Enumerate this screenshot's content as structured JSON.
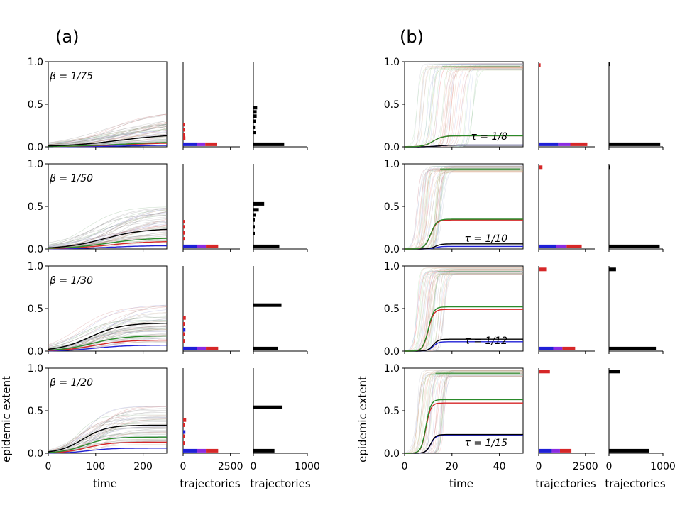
{
  "panels": [
    {
      "label": "(a)",
      "xlabel": "time",
      "ylabel": "epidemic extent",
      "time_xlim": [
        0,
        250
      ],
      "time_ticks": [
        "0",
        "100",
        "200"
      ]
    },
    {
      "label": "(b)",
      "xlabel": "time",
      "ylabel": "epidemic extent",
      "time_xlim": [
        0,
        50
      ],
      "time_ticks": [
        "0",
        "20",
        "40"
      ]
    }
  ],
  "hist_labels": {
    "color": "trajectories",
    "black": "trajectories"
  },
  "hist_ticks": {
    "color": [
      "0",
      "2500"
    ],
    "black": [
      "0",
      "1000"
    ]
  },
  "y_ticks": [
    "0.0",
    "0.5",
    "1.0"
  ],
  "colors": {
    "red": "#d62728",
    "green": "#2a8a2a",
    "blue": "#1f1fd6",
    "black": "#000000",
    "gray": "#7f7f7f",
    "brown": "#a0522d"
  },
  "chart_data": [
    {
      "panel": "a",
      "type": "line",
      "rows": [
        {
          "annotation": "β = 1/75",
          "final": {
            "black": 0.15,
            "green": 0.06,
            "red": 0.05,
            "blue": 0.02
          },
          "rate": 0.018,
          "midpoint": 160,
          "spread": [
            0.05,
            0.45
          ],
          "hist_color": [
            {
              "y": 0.03,
              "w": 1800,
              "c": "mix"
            },
            {
              "y": 0.1,
              "w": 120,
              "c": "red"
            },
            {
              "y": 0.14,
              "w": 80,
              "c": "red"
            },
            {
              "y": 0.2,
              "w": 60,
              "c": "red"
            },
            {
              "y": 0.26,
              "w": 50,
              "c": "red"
            }
          ],
          "hist_black": [
            {
              "y": 0.03,
              "w": 570
            },
            {
              "y": 0.17,
              "w": 40
            },
            {
              "y": 0.23,
              "w": 30
            },
            {
              "y": 0.3,
              "w": 50
            },
            {
              "y": 0.36,
              "w": 60
            },
            {
              "y": 0.41,
              "w": 60
            },
            {
              "y": 0.46,
              "w": 70
            }
          ]
        },
        {
          "annotation": "β = 1/50",
          "final": {
            "black": 0.24,
            "green": 0.13,
            "red": 0.09,
            "blue": 0.04
          },
          "rate": 0.024,
          "midpoint": 130,
          "spread": [
            0.1,
            0.53
          ],
          "hist_color": [
            {
              "y": 0.03,
              "w": 1850,
              "c": "mix"
            },
            {
              "y": 0.12,
              "w": 100,
              "c": "red"
            },
            {
              "y": 0.19,
              "w": 90,
              "c": "red"
            },
            {
              "y": 0.26,
              "w": 80,
              "c": "red"
            },
            {
              "y": 0.32,
              "w": 80,
              "c": "red"
            }
          ],
          "hist_black": [
            {
              "y": 0.03,
              "w": 480
            },
            {
              "y": 0.18,
              "w": 20
            },
            {
              "y": 0.26,
              "w": 20
            },
            {
              "y": 0.34,
              "w": 20
            },
            {
              "y": 0.4,
              "w": 40
            },
            {
              "y": 0.46,
              "w": 100
            },
            {
              "y": 0.53,
              "w": 200
            }
          ]
        },
        {
          "annotation": "β = 1/30",
          "final": {
            "black": 0.33,
            "green": 0.18,
            "red": 0.13,
            "blue": 0.07
          },
          "rate": 0.03,
          "midpoint": 100,
          "spread": [
            0.1,
            0.56
          ],
          "hist_color": [
            {
              "y": 0.03,
              "w": 1850,
              "c": "mix"
            },
            {
              "y": 0.12,
              "w": 60,
              "c": "red"
            },
            {
              "y": 0.2,
              "w": 60,
              "c": "red"
            },
            {
              "y": 0.25,
              "w": 120,
              "c": "blue"
            },
            {
              "y": 0.32,
              "w": 70,
              "c": "red"
            },
            {
              "y": 0.39,
              "w": 140,
              "c": "red"
            }
          ],
          "hist_black": [
            {
              "y": 0.03,
              "w": 450
            },
            {
              "y": 0.54,
              "w": 520
            }
          ]
        },
        {
          "annotation": "β = 1/20",
          "final": {
            "black": 0.33,
            "green": 0.19,
            "red": 0.13,
            "blue": 0.06
          },
          "rate": 0.04,
          "midpoint": 85,
          "spread": [
            0.1,
            0.57
          ],
          "hist_color": [
            {
              "y": 0.03,
              "w": 1850,
              "c": "mix"
            },
            {
              "y": 0.12,
              "w": 60,
              "c": "red"
            },
            {
              "y": 0.2,
              "w": 60,
              "c": "red"
            },
            {
              "y": 0.25,
              "w": 120,
              "c": "blue"
            },
            {
              "y": 0.33,
              "w": 70,
              "c": "red"
            },
            {
              "y": 0.39,
              "w": 160,
              "c": "red"
            }
          ],
          "hist_black": [
            {
              "y": 0.03,
              "w": 390
            },
            {
              "y": 0.54,
              "w": 540
            }
          ]
        }
      ]
    },
    {
      "panel": "b",
      "type": "line",
      "rows": [
        {
          "annotation": "τ = 1/8",
          "final": {
            "black": 0.02,
            "green": 0.13,
            "red": 0.13,
            "blue": 0.02,
            "top_green": 0.94
          },
          "rate": 0.5,
          "midpoint": 12,
          "hist_color": [
            {
              "y": 0.03,
              "w": 2600,
              "c": "mix"
            },
            {
              "y": 0.96,
              "w": 100,
              "c": "red"
            }
          ],
          "hist_black": [
            {
              "y": 0.03,
              "w": 950
            },
            {
              "y": 0.97,
              "w": 15
            }
          ]
        },
        {
          "annotation": "τ = 1/10",
          "final": {
            "black": 0.06,
            "green": 0.35,
            "red": 0.34,
            "blue": 0.03,
            "top_green": 0.94
          },
          "rate": 0.8,
          "midpoint": 11,
          "hist_color": [
            {
              "y": 0.03,
              "w": 2300,
              "c": "mix"
            },
            {
              "y": 0.96,
              "w": 200,
              "c": "red"
            }
          ],
          "hist_black": [
            {
              "y": 0.03,
              "w": 940
            },
            {
              "y": 0.96,
              "w": 25
            }
          ]
        },
        {
          "annotation": "τ = 1/12",
          "final": {
            "black": 0.14,
            "green": 0.52,
            "red": 0.49,
            "blue": 0.11,
            "top_green": 0.93
          },
          "rate": 0.9,
          "midpoint": 10,
          "hist_color": [
            {
              "y": 0.03,
              "w": 1950,
              "c": "mix"
            },
            {
              "y": 0.96,
              "w": 400,
              "c": "red"
            }
          ],
          "hist_black": [
            {
              "y": 0.03,
              "w": 870
            },
            {
              "y": 0.96,
              "w": 130
            }
          ]
        },
        {
          "annotation": "τ = 1/15",
          "final": {
            "black": 0.22,
            "green": 0.63,
            "red": 0.59,
            "blue": 0.21,
            "top_green": 0.94
          },
          "rate": 1.0,
          "midpoint": 9,
          "hist_color": [
            {
              "y": 0.03,
              "w": 1750,
              "c": "mix"
            },
            {
              "y": 0.96,
              "w": 600,
              "c": "red"
            }
          ],
          "hist_black": [
            {
              "y": 0.03,
              "w": 740
            },
            {
              "y": 0.96,
              "w": 200
            }
          ]
        }
      ]
    }
  ]
}
